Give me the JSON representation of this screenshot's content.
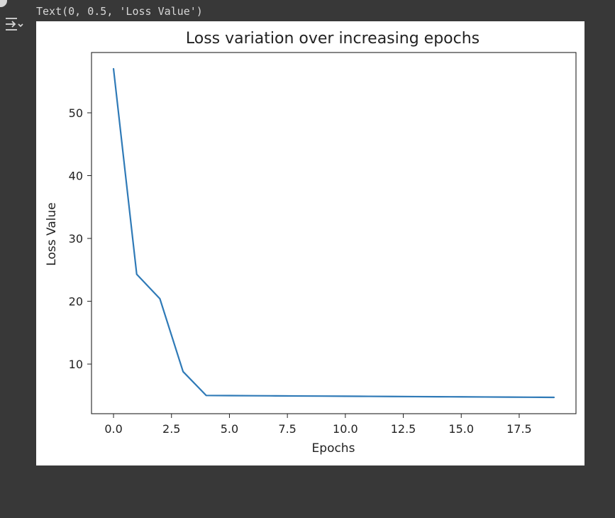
{
  "output": {
    "result_text": "Text(0, 0.5, 'Loss Value')",
    "icon": "output-toggle-icon"
  },
  "colors": {
    "background": "#383838",
    "line": "#2f7ab7",
    "text": "#d7d7d7"
  },
  "chart_data": {
    "type": "line",
    "title": "Loss variation over increasing epochs",
    "xlabel": "Epochs",
    "ylabel": "Loss Value",
    "x": [
      0,
      1,
      2,
      3,
      4,
      5,
      6,
      7,
      8,
      9,
      10,
      11,
      12,
      13,
      14,
      15,
      16,
      17,
      18,
      19
    ],
    "y": [
      57.0,
      24.3,
      20.4,
      8.8,
      5.0,
      4.98,
      4.96,
      4.94,
      4.92,
      4.9,
      4.88,
      4.86,
      4.84,
      4.82,
      4.8,
      4.78,
      4.76,
      4.74,
      4.72,
      4.7
    ],
    "xlim": [
      -0.95,
      19.95
    ],
    "ylim": [
      2.1,
      59.6
    ],
    "xticks": [
      0.0,
      2.5,
      5.0,
      7.5,
      10.0,
      12.5,
      15.0,
      17.5
    ],
    "xtick_labels": [
      "0.0",
      "2.5",
      "5.0",
      "7.5",
      "10.0",
      "12.5",
      "15.0",
      "17.5"
    ],
    "yticks": [
      10,
      20,
      30,
      40,
      50
    ],
    "ytick_labels": [
      "10",
      "20",
      "30",
      "40",
      "50"
    ],
    "grid": false,
    "legend": "none"
  }
}
